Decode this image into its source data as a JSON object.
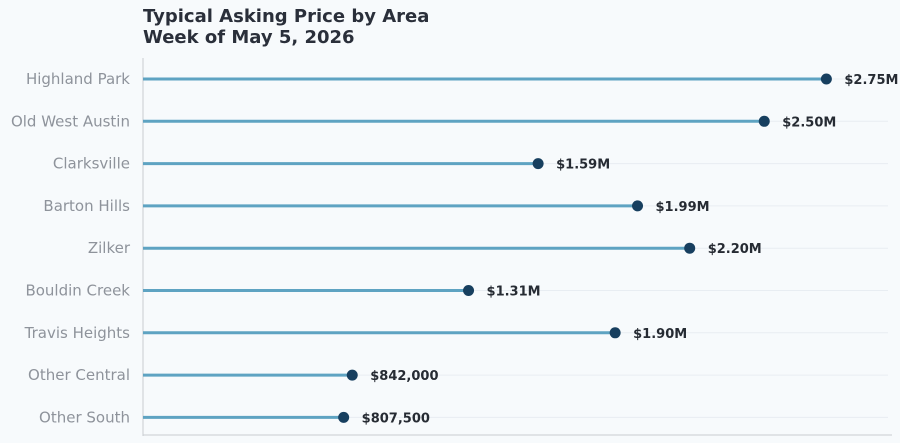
{
  "chart_data": {
    "type": "lollipop",
    "title": "Typical Asking Price by Area",
    "subtitle": "Week of May 5, 2026",
    "xlim": [
      0,
      3000000
    ],
    "grid": true,
    "categories": [
      "Highland Park",
      "Old West Austin",
      "Clarksville",
      "Barton Hills",
      "Zilker",
      "Bouldin Creek",
      "Travis Heights",
      "Other Central",
      "Other South"
    ],
    "values": [
      2750000,
      2500000,
      1590000,
      1990000,
      2200000,
      1310000,
      1900000,
      842000,
      807500
    ],
    "value_labels": [
      "$2.75M",
      "$2.50M",
      "$1.59M",
      "$1.99M",
      "$2.20M",
      "$1.31M",
      "$1.90M",
      "$842,000",
      "$807,500"
    ],
    "colors": {
      "stem": "#5ea3c2",
      "dot": "#173f5f",
      "grid": "#e8edf2",
      "axis": "#c9ccd1"
    }
  }
}
